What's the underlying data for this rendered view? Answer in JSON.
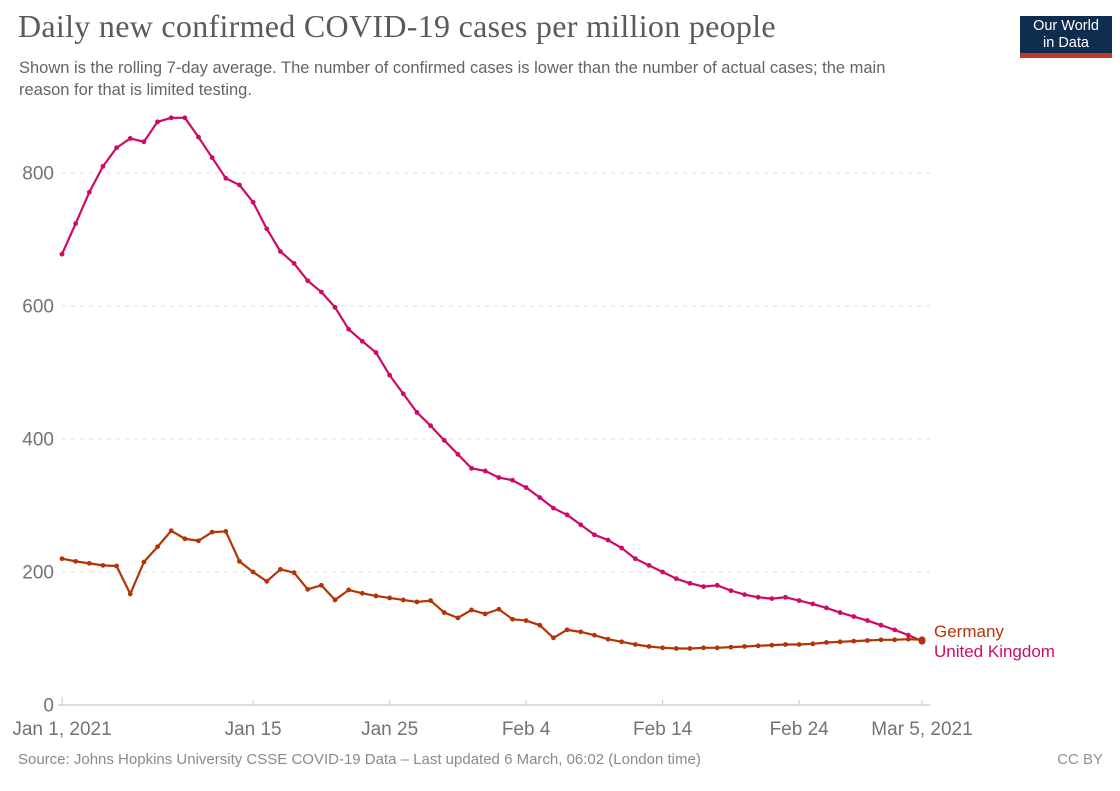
{
  "header": {
    "title": "Daily new confirmed COVID-19 cases per million people",
    "subtitle": "Shown is the rolling 7-day average. The number of confirmed cases is lower than the number of actual cases; the main reason for that is limited testing.",
    "logo": {
      "line1": "Our World",
      "line2": "in Data",
      "bg_color": "#0f2d4f",
      "accent_color": "#c0392b"
    }
  },
  "chart_data": {
    "type": "line",
    "title": "Daily new confirmed COVID-19 cases per million people",
    "xlabel": "",
    "ylabel": "",
    "frequency": "daily",
    "x_start_date": "Jan 1, 2021",
    "x_end_date": "Mar 5, 2021",
    "ylim": [
      0,
      900
    ],
    "grid": "dashed-horizontal",
    "legend_position": "end-of-line",
    "y_ticks": [
      0,
      200,
      400,
      600,
      800
    ],
    "x_ticks": [
      {
        "day": 0,
        "label": "Jan 1, 2021"
      },
      {
        "day": 14,
        "label": "Jan 15"
      },
      {
        "day": 24,
        "label": "Jan 25"
      },
      {
        "day": 34,
        "label": "Feb 4"
      },
      {
        "day": 44,
        "label": "Feb 14"
      },
      {
        "day": 54,
        "label": "Feb 24"
      },
      {
        "day": 63,
        "label": "Mar 5, 2021"
      }
    ],
    "series": [
      {
        "name": "Germany",
        "color": "#b13507",
        "values": [
          220,
          216,
          213,
          210,
          209,
          167,
          215,
          238,
          262,
          250,
          247,
          260,
          261,
          216,
          200,
          186,
          204,
          199,
          174,
          180,
          158,
          173,
          168,
          164,
          161,
          158,
          155,
          157,
          139,
          131,
          143,
          137,
          144,
          129,
          127,
          120,
          101,
          113,
          110,
          105,
          99,
          95,
          91,
          88,
          86,
          85,
          85,
          86,
          86,
          87,
          88,
          89,
          90,
          91,
          91,
          92,
          94,
          95,
          96,
          97,
          98,
          98,
          99,
          98
        ]
      },
      {
        "name": "United Kingdom",
        "color": "#cf0a66",
        "values": [
          678,
          724,
          771,
          810,
          838,
          852,
          847,
          877,
          883,
          883,
          854,
          823,
          792,
          782,
          756,
          716,
          682,
          664,
          638,
          621,
          598,
          565,
          547,
          530,
          496,
          468,
          440,
          420,
          398,
          377,
          356,
          352,
          342,
          338,
          327,
          312,
          296,
          286,
          271,
          256,
          248,
          236,
          220,
          210,
          200,
          190,
          183,
          178,
          180,
          172,
          166,
          162,
          160,
          162,
          157,
          152,
          146,
          139,
          133,
          127,
          120,
          113,
          105,
          96
        ]
      }
    ]
  },
  "footer": {
    "source": "Source: Johns Hopkins University CSSE COVID-19 Data – Last updated 6 March, 06:02 (London time)",
    "license": "CC BY"
  }
}
